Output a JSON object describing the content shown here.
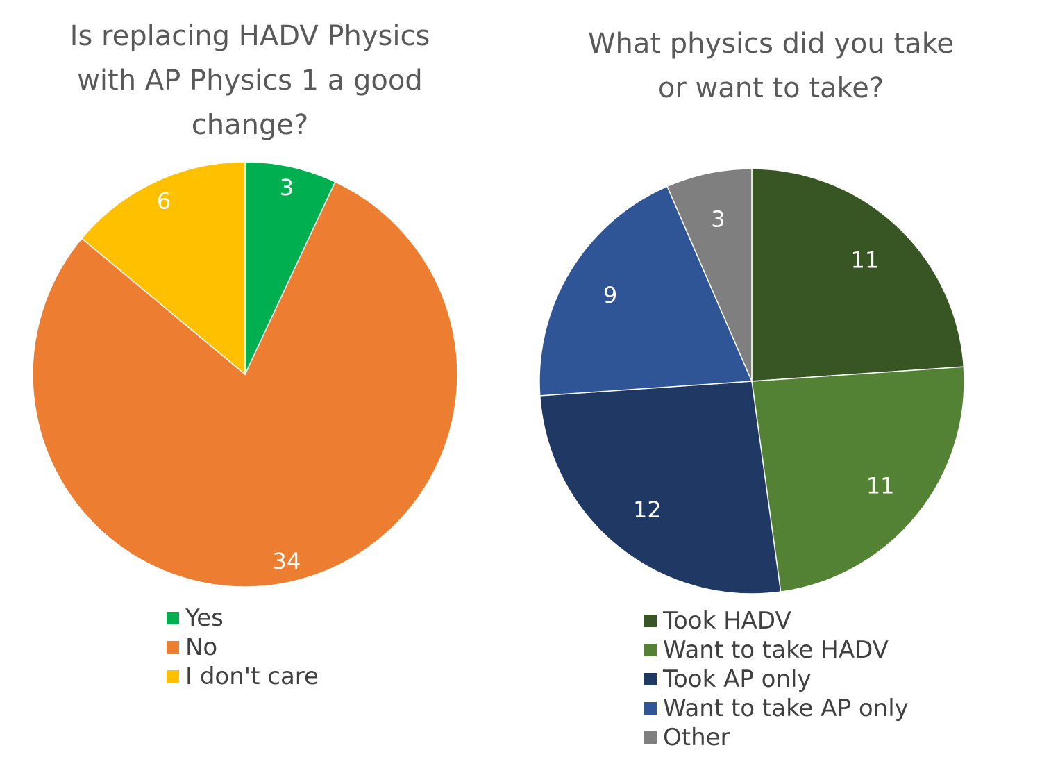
{
  "chart_data": [
    {
      "type": "pie",
      "title": "Is replacing HADV Physics with AP Physics 1 a good change?",
      "title_lines": [
        "Is replacing HADV Physics",
        "with AP Physics 1 a good",
        "change?"
      ],
      "categories": [
        "Yes",
        "No",
        "I don't care"
      ],
      "values": [
        3,
        34,
        6
      ],
      "data_labels": [
        "3",
        "34",
        "6"
      ],
      "colors": [
        "#00b050",
        "#ed7d31",
        "#ffc000"
      ],
      "legend": "bottom-left"
    },
    {
      "type": "pie",
      "title": "What physics did you take or want to take?",
      "title_lines": [
        "What physics did you take",
        "or want to take?"
      ],
      "categories": [
        "Took HADV",
        "Want to take HADV",
        "Took AP only",
        "Want to take AP only",
        "Other"
      ],
      "values": [
        11,
        11,
        12,
        9,
        3
      ],
      "data_labels": [
        "11",
        "11",
        "12",
        "9",
        "3"
      ],
      "colors": [
        "#375623",
        "#548235",
        "#203864",
        "#2f5597",
        "#7f7f7f"
      ],
      "legend": "bottom-left"
    }
  ]
}
